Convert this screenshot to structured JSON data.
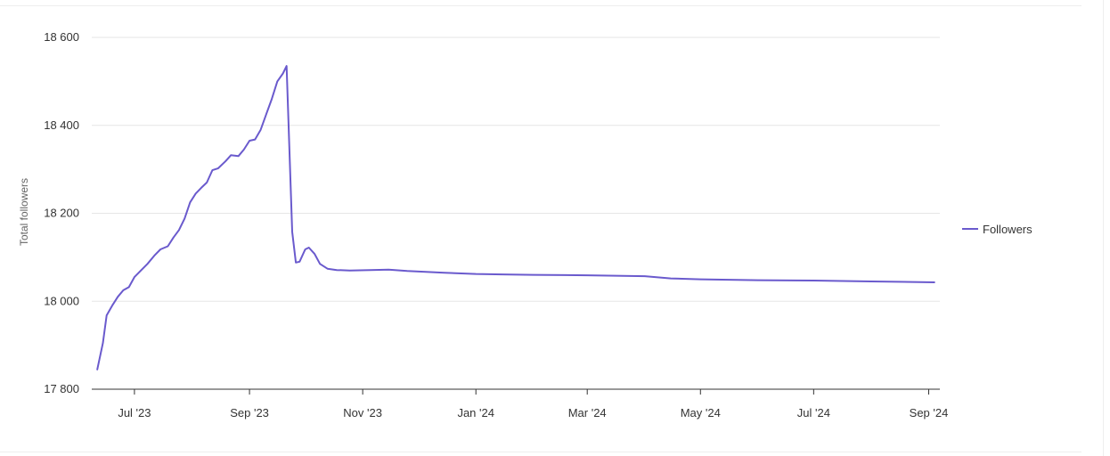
{
  "chart_data": {
    "type": "line",
    "ylabel": "Total followers",
    "ylim": [
      17800,
      18600
    ],
    "y_ticks": [
      {
        "value": 18600,
        "label": "18 600"
      },
      {
        "value": 18400,
        "label": "18 400"
      },
      {
        "value": 18200,
        "label": "18 200"
      },
      {
        "value": 18000,
        "label": "18 000"
      },
      {
        "value": 17800,
        "label": "17 800"
      }
    ],
    "xlim": [
      "2023-06-08",
      "2024-09-07"
    ],
    "x_ticks": [
      {
        "date": "2023-07-01",
        "label": "Jul '23"
      },
      {
        "date": "2023-09-01",
        "label": "Sep '23"
      },
      {
        "date": "2023-11-01",
        "label": "Nov '23"
      },
      {
        "date": "2024-01-01",
        "label": "Jan '24"
      },
      {
        "date": "2024-03-01",
        "label": "Mar '24"
      },
      {
        "date": "2024-05-01",
        "label": "May '24"
      },
      {
        "date": "2024-07-01",
        "label": "Jul '24"
      },
      {
        "date": "2024-09-01",
        "label": "Sep '24"
      }
    ],
    "grid": true,
    "legend_position": "right",
    "series": [
      {
        "name": "Followers",
        "color": "#6a5acd",
        "points": [
          [
            "2023-06-11",
            17845
          ],
          [
            "2023-06-14",
            17905
          ],
          [
            "2023-06-16",
            17968
          ],
          [
            "2023-06-19",
            17990
          ],
          [
            "2023-06-22",
            18010
          ],
          [
            "2023-06-25",
            18025
          ],
          [
            "2023-06-28",
            18032
          ],
          [
            "2023-07-01",
            18055
          ],
          [
            "2023-07-04",
            18068
          ],
          [
            "2023-07-08",
            18085
          ],
          [
            "2023-07-12",
            18105
          ],
          [
            "2023-07-15",
            18118
          ],
          [
            "2023-07-19",
            18125
          ],
          [
            "2023-07-22",
            18145
          ],
          [
            "2023-07-25",
            18162
          ],
          [
            "2023-07-28",
            18188
          ],
          [
            "2023-07-31",
            18225
          ],
          [
            "2023-08-03",
            18245
          ],
          [
            "2023-08-06",
            18258
          ],
          [
            "2023-08-09",
            18270
          ],
          [
            "2023-08-12",
            18298
          ],
          [
            "2023-08-15",
            18302
          ],
          [
            "2023-08-19",
            18318
          ],
          [
            "2023-08-22",
            18332
          ],
          [
            "2023-08-26",
            18330
          ],
          [
            "2023-08-29",
            18345
          ],
          [
            "2023-09-01",
            18365
          ],
          [
            "2023-09-04",
            18368
          ],
          [
            "2023-09-07",
            18390
          ],
          [
            "2023-09-10",
            18425
          ],
          [
            "2023-09-13",
            18460
          ],
          [
            "2023-09-16",
            18500
          ],
          [
            "2023-09-19",
            18518
          ],
          [
            "2023-09-21",
            18535
          ],
          [
            "2023-09-24",
            18158
          ],
          [
            "2023-09-26",
            18088
          ],
          [
            "2023-09-28",
            18090
          ],
          [
            "2023-10-01",
            18118
          ],
          [
            "2023-10-03",
            18122
          ],
          [
            "2023-10-06",
            18108
          ],
          [
            "2023-10-09",
            18085
          ],
          [
            "2023-10-13",
            18074
          ],
          [
            "2023-10-18",
            18071
          ],
          [
            "2023-10-25",
            18070
          ],
          [
            "2023-11-05",
            18071
          ],
          [
            "2023-11-15",
            18072
          ],
          [
            "2023-11-25",
            18069
          ],
          [
            "2023-12-05",
            18067
          ],
          [
            "2023-12-15",
            18065
          ],
          [
            "2024-01-01",
            18062
          ],
          [
            "2024-01-15",
            18061
          ],
          [
            "2024-02-01",
            18060
          ],
          [
            "2024-03-01",
            18059
          ],
          [
            "2024-04-01",
            18057
          ],
          [
            "2024-04-15",
            18052
          ],
          [
            "2024-05-01",
            18050
          ],
          [
            "2024-06-01",
            18048
          ],
          [
            "2024-07-01",
            18047
          ],
          [
            "2024-08-01",
            18045
          ],
          [
            "2024-09-04",
            18043
          ]
        ]
      }
    ]
  }
}
